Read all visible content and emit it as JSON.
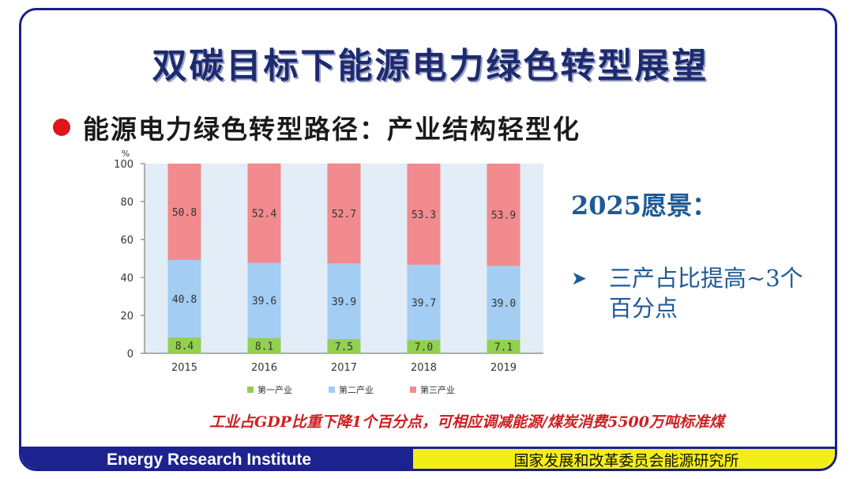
{
  "slide": {
    "title": "双碳目标下能源电力绿色转型展望",
    "bullet_text": "能源电力绿色转型路径：产业结构轻型化",
    "vision_title": "2025愿景：",
    "vision_arrow": "➤",
    "vision_item": "三产占比提高~3个百分点",
    "note": "工业占GDP比重下降1个百分点，可相应调减能源/煤炭消费5500万吨标准煤"
  },
  "footer": {
    "left_text": "Energy Research Institute",
    "right_text": "国家发展和改革委员会能源研究所"
  },
  "colors": {
    "primary": "#92d050",
    "secondary": "#a3cdf2",
    "tertiary": "#f28b8e",
    "plot_bg": "#e3edf7",
    "bullet": "#e0141b",
    "accent_blue": "#1f5a96",
    "note_red": "#cc1f1f",
    "footer_navy": "#1c2290",
    "footer_yellow": "#f3ee1a"
  },
  "chart_data": {
    "type": "bar",
    "stacked": true,
    "categories": [
      "2015",
      "2016",
      "2017",
      "2018",
      "2019"
    ],
    "series": [
      {
        "name": "第一产业",
        "values": [
          8.4,
          8.1,
          7.5,
          7.0,
          7.1
        ],
        "labels": [
          "8.4",
          "8.1",
          "7.5",
          "7.0",
          "7.1"
        ]
      },
      {
        "name": "第二产业",
        "values": [
          40.8,
          39.6,
          39.9,
          39.7,
          39.0
        ],
        "labels": [
          "40.8",
          "39.6",
          "39.9",
          "39.7",
          "39.0"
        ]
      },
      {
        "name": "第三产业",
        "values": [
          50.8,
          52.4,
          52.7,
          53.3,
          53.9
        ],
        "labels": [
          "50.8",
          "52.4",
          "52.7",
          "53.3",
          "53.9"
        ]
      }
    ],
    "ylabel": "%",
    "ylim": [
      0,
      100
    ],
    "yticks": [
      "0",
      "20",
      "40",
      "60",
      "80",
      "100"
    ],
    "legend_position": "bottom",
    "grid": false
  }
}
